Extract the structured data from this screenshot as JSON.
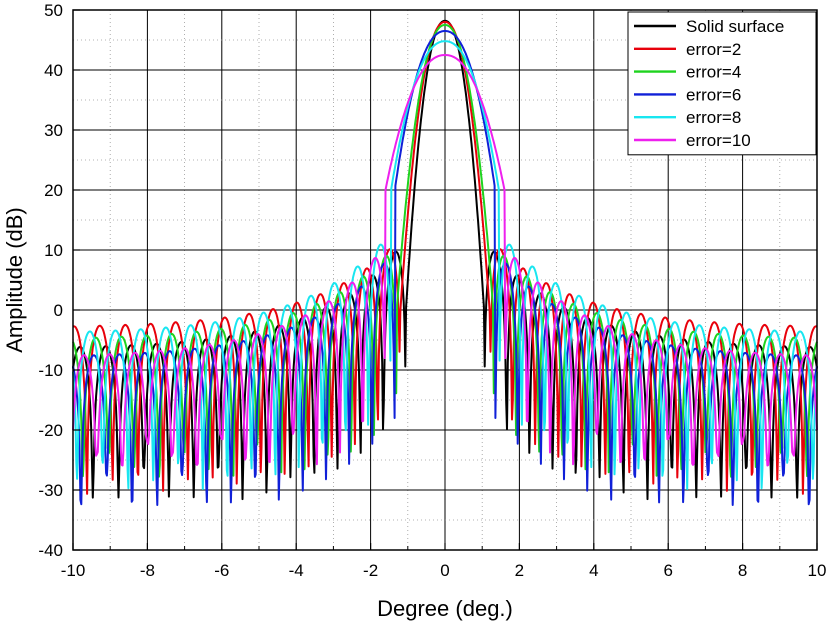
{
  "chart_data": {
    "type": "line",
    "xlabel": "Degree (deg.)",
    "ylabel": "Amplitude (dB)",
    "xlim": [
      -10,
      10
    ],
    "ylim": [
      -40,
      50
    ],
    "xticks": [
      -10,
      -8,
      -6,
      -4,
      -2,
      0,
      2,
      4,
      6,
      8,
      10
    ],
    "yticks": [
      -40,
      -30,
      -20,
      -10,
      0,
      10,
      20,
      30,
      40,
      50
    ],
    "xtick_labels": [
      "-10",
      "-8",
      "-6",
      "-4",
      "-2",
      "0",
      "2",
      "4",
      "6",
      "8",
      "10"
    ],
    "ytick_labels": [
      "-40",
      "-30",
      "-20",
      "-10",
      "0",
      "10",
      "20",
      "30",
      "40",
      "50"
    ],
    "grid": true,
    "legend_position": "top-right",
    "series": [
      {
        "name": "Solid surface",
        "color": "#000000",
        "peak": 48.2,
        "mainlobe_halfwidth": 1.05,
        "sidelobe_level": 12.0,
        "floor_level": -6.5,
        "shoulder": 0,
        "null_depth": -26
      },
      {
        "name": "error=2",
        "color": "#e8000b",
        "peak": 48.0,
        "mainlobe_halfwidth": 1.2,
        "sidelobe_level": 12.0,
        "floor_level": -3.0,
        "shoulder": 2,
        "null_depth": -25
      },
      {
        "name": "error=4",
        "color": "#1ed31e",
        "peak": 47.5,
        "mainlobe_halfwidth": 1.3,
        "sidelobe_level": 11.0,
        "floor_level": -5.0,
        "shoulder": 4,
        "null_depth": -22
      },
      {
        "name": "error=6",
        "color": "#1020d8",
        "peak": 46.5,
        "mainlobe_halfwidth": 1.35,
        "sidelobe_level": 10.0,
        "floor_level": -8.0,
        "shoulder": 6,
        "null_depth": -27
      },
      {
        "name": "error=8",
        "color": "#19e6f0",
        "peak": 44.8,
        "mainlobe_halfwidth": 1.45,
        "sidelobe_level": 13.0,
        "floor_level": -4.0,
        "shoulder": 8,
        "null_depth": -24
      },
      {
        "name": "error=10",
        "color": "#ee20ee",
        "peak": 42.5,
        "mainlobe_halfwidth": 1.6,
        "sidelobe_level": 11.0,
        "floor_level": -8.0,
        "shoulder": 10,
        "null_depth": -20
      }
    ]
  }
}
